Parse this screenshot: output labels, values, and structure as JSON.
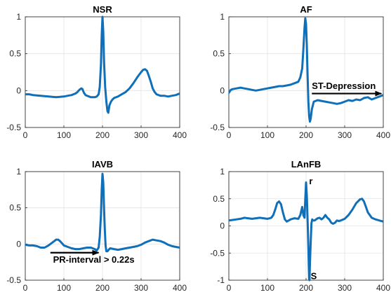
{
  "colors": {
    "trace": "#0f6fb8",
    "axis": "#262626",
    "grid": "#e3e3e3"
  },
  "chart_data": [
    {
      "type": "line",
      "title": "NSR",
      "xlim": [
        0,
        400
      ],
      "ylim": [
        -0.5,
        1
      ],
      "xticks": [
        0,
        100,
        200,
        300,
        400
      ],
      "yticks": [
        -0.5,
        0,
        0.5,
        1
      ],
      "ytick_labels": [
        "-0.5",
        "0",
        "0.5",
        "1"
      ],
      "grid": true,
      "annotations": [],
      "x": [
        0,
        10,
        20,
        40,
        60,
        80,
        100,
        110,
        120,
        130,
        135,
        140,
        145,
        148,
        152,
        156,
        160,
        170,
        180,
        185,
        190,
        193,
        196,
        198,
        200,
        202,
        204,
        207,
        210,
        213,
        215,
        218,
        222,
        226,
        230,
        240,
        250,
        260,
        270,
        280,
        290,
        300,
        305,
        310,
        315,
        320,
        325,
        330,
        335,
        340,
        350,
        360,
        370,
        380,
        390,
        400
      ],
      "y": [
        -0.05,
        -0.05,
        -0.06,
        -0.07,
        -0.08,
        -0.09,
        -0.08,
        -0.07,
        -0.06,
        -0.04,
        -0.02,
        0.01,
        0.03,
        0.02,
        -0.03,
        -0.06,
        -0.07,
        -0.09,
        -0.09,
        -0.08,
        -0.05,
        0.05,
        0.35,
        0.75,
        1.0,
        0.8,
        0.4,
        0.05,
        -0.15,
        -0.28,
        -0.3,
        -0.2,
        -0.15,
        -0.12,
        -0.1,
        -0.08,
        -0.05,
        -0.02,
        0.03,
        0.1,
        0.18,
        0.25,
        0.28,
        0.29,
        0.27,
        0.2,
        0.12,
        0.03,
        -0.02,
        -0.05,
        -0.07,
        -0.07,
        -0.08,
        -0.07,
        -0.06,
        -0.04
      ]
    },
    {
      "type": "line",
      "title": "AF",
      "xlim": [
        0,
        400
      ],
      "ylim": [
        -0.5,
        1
      ],
      "xticks": [
        0,
        100,
        200,
        300,
        400
      ],
      "yticks": [
        -0.5,
        0,
        0.5,
        1
      ],
      "ytick_labels": [
        "-0.5",
        "0",
        "0.5",
        "1"
      ],
      "grid": true,
      "annotations": [
        {
          "text": "ST-Depression",
          "x": 215,
          "y": 0.06,
          "arrow_from": [
            215,
            -0.04
          ],
          "arrow_to": [
            395,
            -0.04
          ]
        }
      ],
      "x": [
        0,
        5,
        10,
        20,
        30,
        40,
        50,
        60,
        70,
        80,
        90,
        100,
        110,
        120,
        130,
        140,
        150,
        160,
        170,
        180,
        185,
        190,
        193,
        196,
        198,
        200,
        202,
        204,
        206,
        208,
        210,
        212,
        215,
        220,
        230,
        240,
        250,
        260,
        270,
        280,
        290,
        300,
        310,
        320,
        330,
        340,
        350,
        360,
        370,
        380,
        390,
        400
      ],
      "y": [
        -0.03,
        0.01,
        0.02,
        0.03,
        0.04,
        0.03,
        0.02,
        0.01,
        0.0,
        0.01,
        0.02,
        0.03,
        0.04,
        0.05,
        0.06,
        0.06,
        0.07,
        0.08,
        0.1,
        0.12,
        0.18,
        0.3,
        0.55,
        0.85,
        0.98,
        0.9,
        0.6,
        0.2,
        -0.15,
        -0.35,
        -0.42,
        -0.38,
        -0.25,
        -0.15,
        -0.13,
        -0.14,
        -0.15,
        -0.16,
        -0.17,
        -0.18,
        -0.17,
        -0.15,
        -0.13,
        -0.14,
        -0.12,
        -0.13,
        -0.1,
        -0.09,
        -0.12,
        -0.1,
        -0.08,
        -0.06
      ]
    },
    {
      "type": "line",
      "title": "IAVB",
      "xlim": [
        0,
        400
      ],
      "ylim": [
        -0.5,
        1
      ],
      "xticks": [
        0,
        100,
        200,
        300,
        400
      ],
      "yticks": [
        -0.5,
        0,
        0.5,
        1
      ],
      "ytick_labels": [
        "-0.5",
        "0",
        "0.5",
        "1"
      ],
      "grid": true,
      "annotations": [
        {
          "text": "PR-interval > 0.22s",
          "x": 72,
          "y": -0.22,
          "arrow_from": [
            65,
            -0.12
          ],
          "arrow_to": [
            190,
            -0.12
          ]
        }
      ],
      "x": [
        0,
        10,
        20,
        30,
        40,
        50,
        60,
        70,
        75,
        80,
        85,
        90,
        95,
        100,
        105,
        110,
        120,
        130,
        140,
        150,
        160,
        170,
        180,
        185,
        190,
        193,
        196,
        198,
        200,
        202,
        204,
        206,
        208,
        210,
        213,
        216,
        220,
        230,
        240,
        250,
        260,
        270,
        280,
        290,
        300,
        310,
        320,
        330,
        340,
        350,
        360,
        370,
        380,
        390,
        400
      ],
      "y": [
        -0.01,
        -0.02,
        -0.02,
        -0.03,
        -0.05,
        -0.05,
        -0.02,
        0.02,
        0.04,
        0.06,
        0.06,
        0.04,
        0.01,
        -0.02,
        -0.03,
        -0.04,
        -0.06,
        -0.07,
        -0.07,
        -0.06,
        -0.05,
        -0.05,
        -0.07,
        -0.09,
        -0.05,
        0.1,
        0.4,
        0.75,
        0.97,
        0.85,
        0.5,
        0.2,
        -0.02,
        -0.1,
        -0.1,
        -0.08,
        -0.06,
        -0.07,
        -0.08,
        -0.07,
        -0.06,
        -0.05,
        -0.04,
        -0.03,
        -0.01,
        0.02,
        0.04,
        0.06,
        0.05,
        0.04,
        0.02,
        -0.01,
        -0.03,
        -0.04,
        -0.05
      ]
    },
    {
      "type": "line",
      "title": "LAnFB",
      "xlim": [
        0,
        400
      ],
      "ylim": [
        -1,
        1
      ],
      "xticks": [
        0,
        100,
        200,
        300,
        400
      ],
      "yticks": [
        -1,
        -0.5,
        0,
        0.5,
        1
      ],
      "ytick_labels": [
        "-1",
        "-0.5",
        "0",
        "0.5",
        "1"
      ],
      "grid": true,
      "annotations": [
        {
          "text": "r",
          "x": 208,
          "y": 0.82
        },
        {
          "text": "S",
          "x": 212,
          "y": -0.93
        }
      ],
      "x": [
        0,
        10,
        20,
        30,
        40,
        50,
        60,
        70,
        80,
        90,
        100,
        110,
        115,
        120,
        125,
        130,
        135,
        140,
        145,
        150,
        160,
        170,
        180,
        185,
        190,
        193,
        196,
        198,
        200,
        202,
        204,
        206,
        207,
        208,
        209,
        210,
        212,
        214,
        216,
        218,
        222,
        226,
        230,
        235,
        240,
        245,
        250,
        255,
        260,
        265,
        270,
        275,
        280,
        285,
        290,
        300,
        310,
        320,
        330,
        340,
        345,
        350,
        355,
        360,
        370,
        380,
        390,
        400
      ],
      "y": [
        0.1,
        0.11,
        0.12,
        0.13,
        0.15,
        0.14,
        0.13,
        0.14,
        0.15,
        0.14,
        0.13,
        0.15,
        0.2,
        0.3,
        0.42,
        0.45,
        0.4,
        0.25,
        0.12,
        0.08,
        0.12,
        0.14,
        0.13,
        0.2,
        0.35,
        0.2,
        0.15,
        0.5,
        0.8,
        0.55,
        0.1,
        -0.4,
        -0.75,
        -0.98,
        -1.0,
        -0.7,
        -0.3,
        0.05,
        0.12,
        0.1,
        0.1,
        0.12,
        0.14,
        0.15,
        0.12,
        0.15,
        0.2,
        0.15,
        0.12,
        0.06,
        0.04,
        0.06,
        0.1,
        0.09,
        0.1,
        0.13,
        0.2,
        0.3,
        0.42,
        0.49,
        0.5,
        0.45,
        0.35,
        0.25,
        0.15,
        0.12,
        0.1,
        0.08
      ]
    }
  ]
}
